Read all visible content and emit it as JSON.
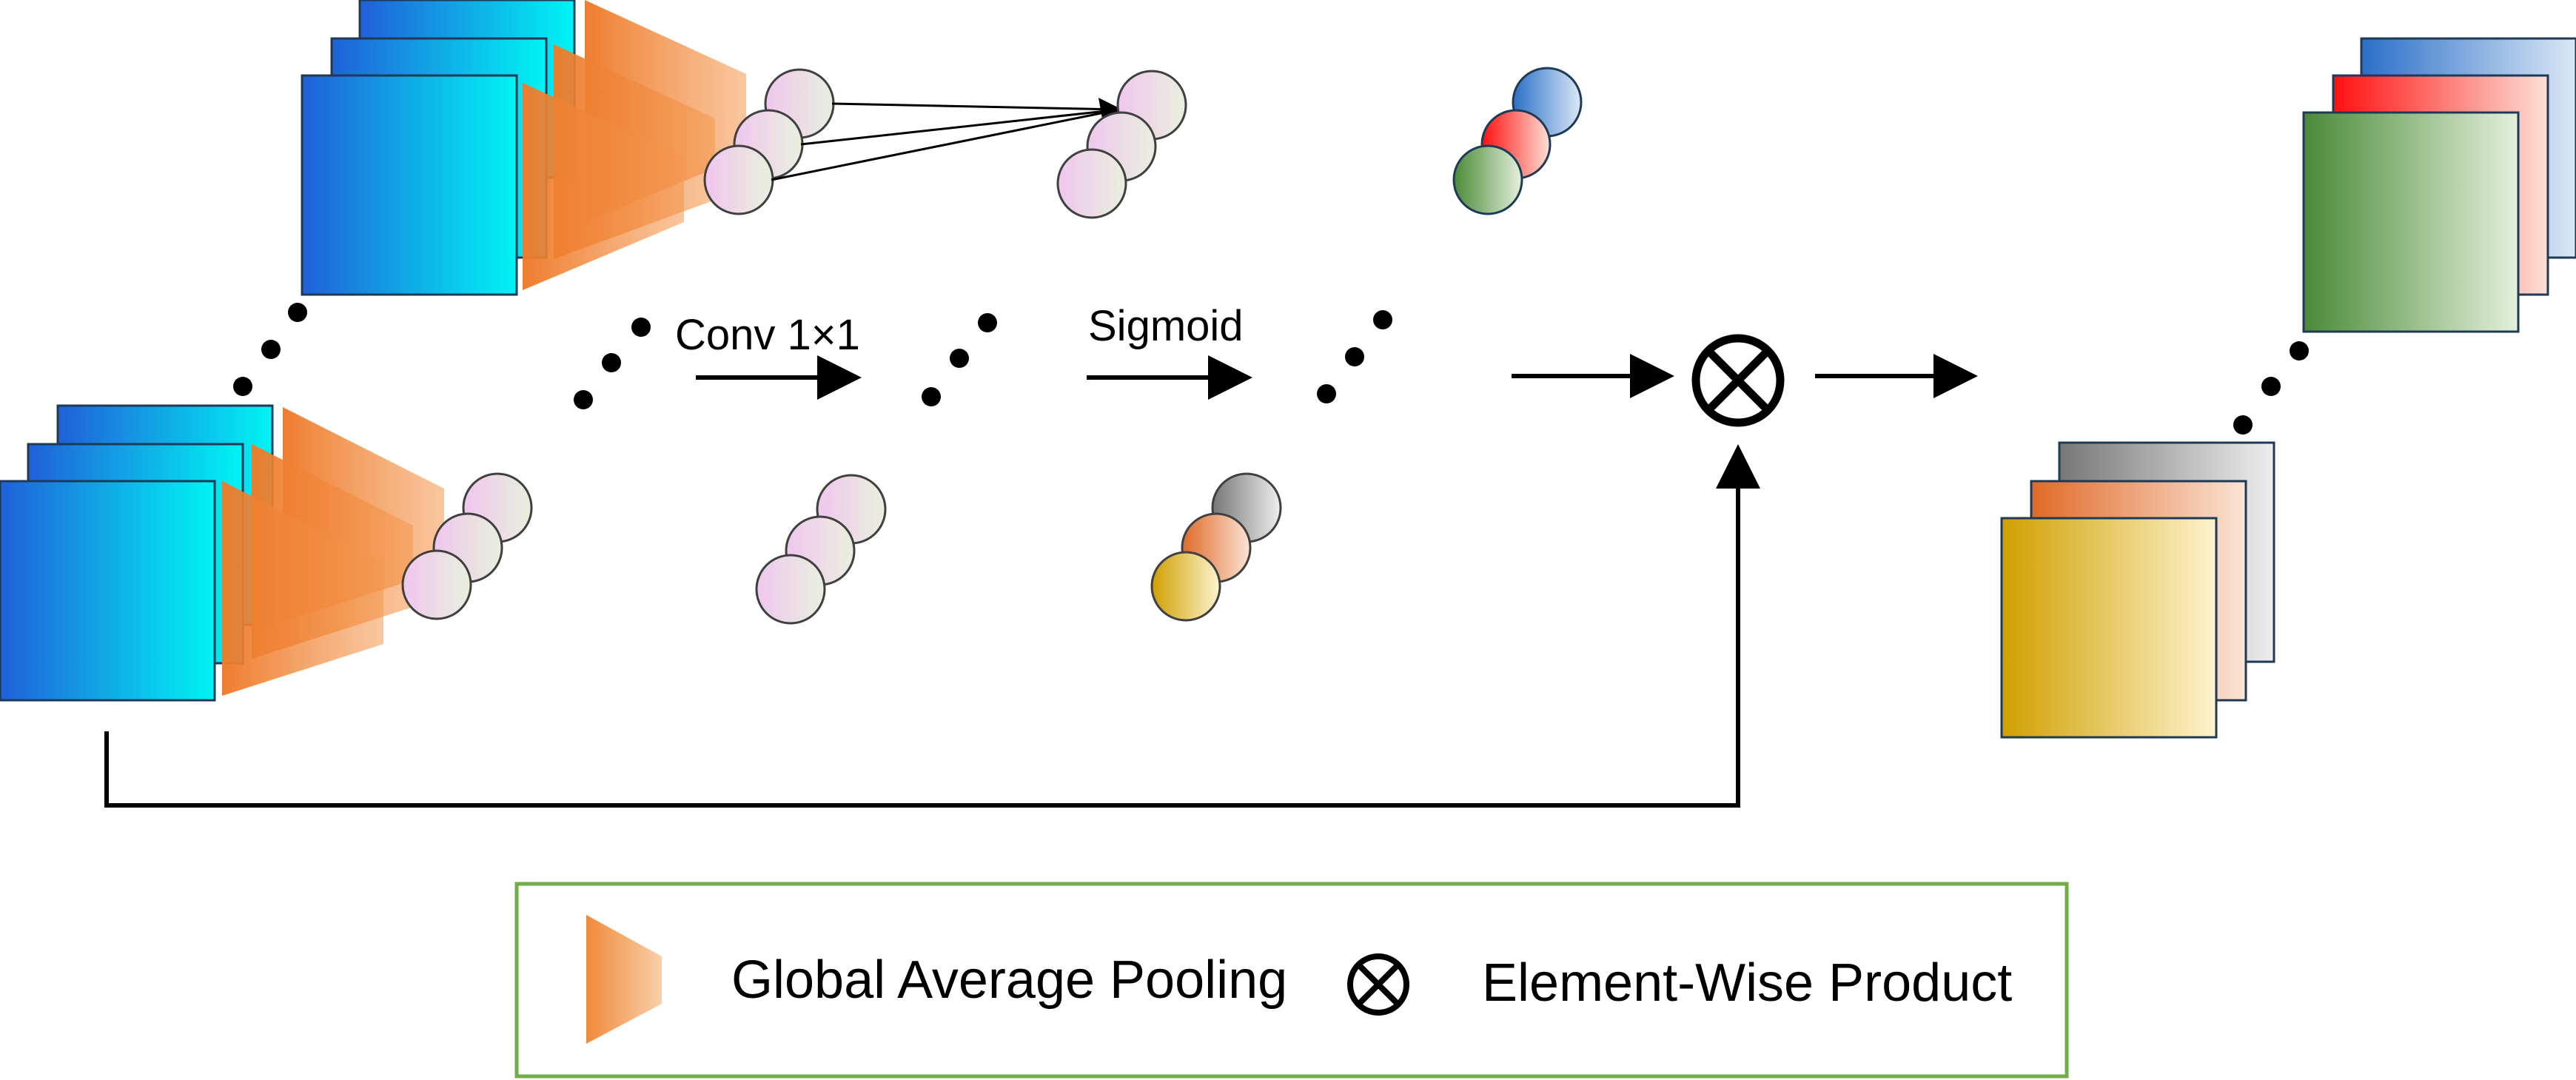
{
  "labels": {
    "conv": "Conv 1×1",
    "sigmoid": "Sigmoid"
  },
  "legend": {
    "pooling_label": "Global Average Pooling",
    "product_label": "Element-Wise Product"
  },
  "colors": {
    "stroke": "#1f3a56",
    "feature_map_gradient": [
      "#2060d8",
      "#00f4f4"
    ],
    "pooling_gradient": [
      "#ee7a2a",
      "#fbe3cc"
    ],
    "weight_circle": [
      "#f0c8ee",
      "#e6f0dc"
    ],
    "output_colors": [
      "#2e78c8",
      "#ff1a1a",
      "#4a8a38",
      "#7a7a7a",
      "#e07030",
      "#d4a400"
    ],
    "legend_border": "#70ad47"
  }
}
